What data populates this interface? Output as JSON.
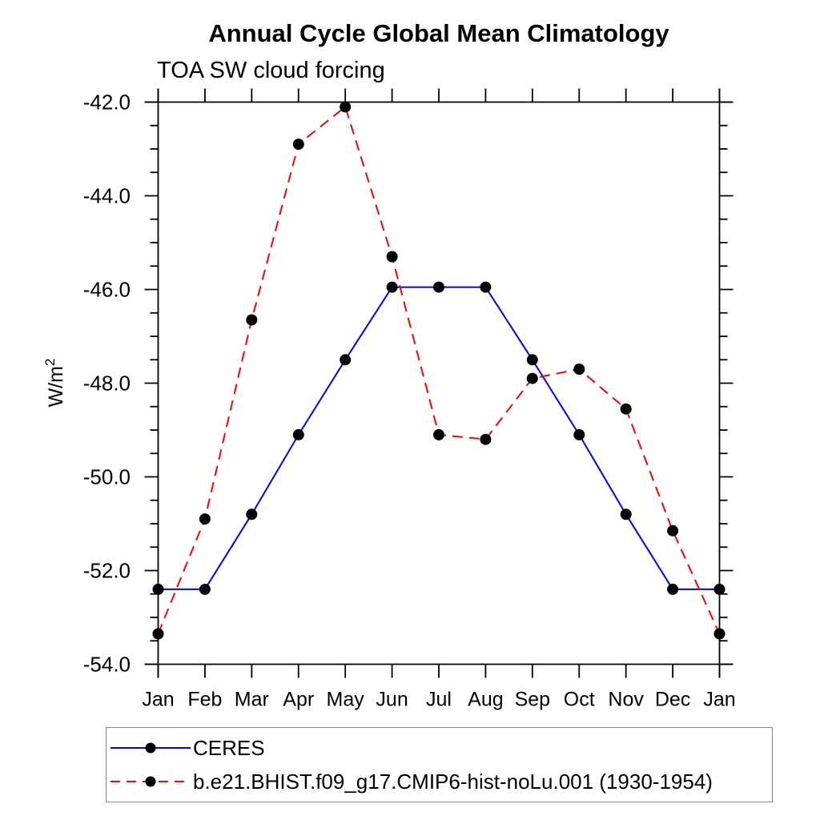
{
  "title": "Annual Cycle Global Mean Climatology",
  "subtitle": "TOA SW cloud forcing",
  "y_axis": {
    "label_base": "W/m",
    "label_superscript": "2",
    "tick_labels": [
      "-42.0",
      "-44.0",
      "-46.0",
      "-48.0",
      "-50.0",
      "-52.0",
      "-54.0"
    ]
  },
  "chart_data": {
    "type": "line",
    "title": "Annual Cycle Global Mean Climatology",
    "subtitle": "TOA SW cloud forcing",
    "ylabel": "W/m2",
    "categories": [
      "Jan",
      "Feb",
      "Mar",
      "Apr",
      "May",
      "Jun",
      "Jul",
      "Aug",
      "Sep",
      "Oct",
      "Nov",
      "Dec",
      "Jan"
    ],
    "ylim": [
      -54.0,
      -42.0
    ],
    "ytick_major_step": 2,
    "ytick_minor_step": 0.5,
    "grid": false,
    "legend_position": "bottom",
    "marker": {
      "shape": "circle",
      "color": "#000000"
    },
    "series": [
      {
        "name": "CERES",
        "color": "#0000ff",
        "line_style": "solid",
        "values": [
          -52.4,
          -52.4,
          -50.8,
          -49.1,
          -47.5,
          -45.95,
          -45.95,
          -45.95,
          -47.5,
          -49.1,
          -50.8,
          -52.4,
          -52.4
        ]
      },
      {
        "name": "b.e21.BHIST.f09_g17.CMIP6-hist-noLu.001 (1930-1954)",
        "color": "#ff0000",
        "line_style": "dashed",
        "values": [
          -53.35,
          -50.9,
          -46.65,
          -42.9,
          -42.1,
          -45.3,
          -49.1,
          -49.2,
          -47.9,
          -47.7,
          -48.55,
          -51.15,
          -53.35
        ]
      }
    ]
  },
  "legend": {
    "entries": [
      {
        "label": "CERES",
        "color": "#0000ff",
        "style": "solid",
        "marker_color": "#000000"
      },
      {
        "label": "b.e21.BHIST.f09_g17.CMIP6-hist-noLu.001 (1930-1954)",
        "color": "#ff0000",
        "style": "dashed",
        "marker_color": "#000000"
      }
    ]
  }
}
